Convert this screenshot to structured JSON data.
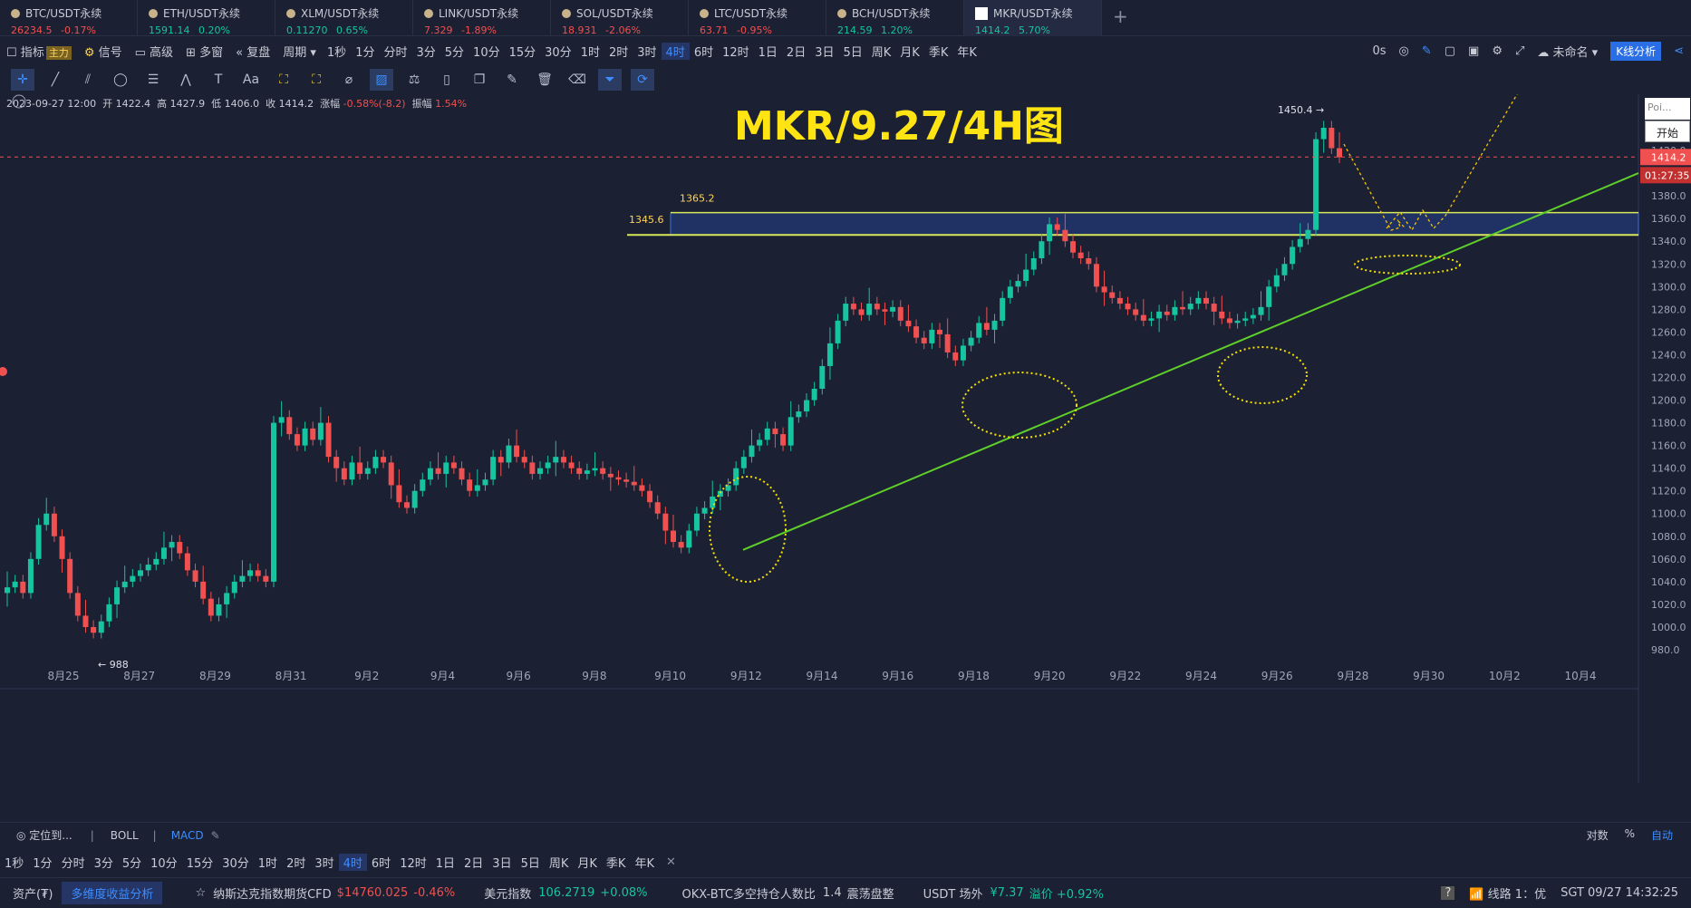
{
  "tabs": [
    {
      "name": "BTC/USDT永续",
      "price": "26234.5",
      "change": "-0.17%",
      "up": false
    },
    {
      "name": "ETH/USDT永续",
      "price": "1591.14",
      "change": "0.20%",
      "up": true
    },
    {
      "name": "XLM/USDT永续",
      "price": "0.11270",
      "change": "0.65%",
      "up": true
    },
    {
      "name": "LINK/USDT永续",
      "price": "7.329",
      "change": "-1.89%",
      "up": false
    },
    {
      "name": "SOL/USDT永续",
      "price": "18.931",
      "change": "-2.06%",
      "up": false
    },
    {
      "name": "LTC/USDT永续",
      "price": "63.71",
      "change": "-0.95%",
      "up": false
    },
    {
      "name": "BCH/USDT永续",
      "price": "214.59",
      "change": "1.20%",
      "up": true
    },
    {
      "name": "MKR/USDT永续",
      "price": "1414.2",
      "change": "5.70%",
      "up": true,
      "active": true
    }
  ],
  "toolbar": {
    "indicator": "指标",
    "main_tag": "主力",
    "signal": "信号",
    "advanced": "高级",
    "multi": "多窗",
    "replay": "复盘",
    "period": "周期",
    "periods": [
      "1秒",
      "1分",
      "分时",
      "3分",
      "5分",
      "10分",
      "15分",
      "30分",
      "1时",
      "2时",
      "3时",
      "4时",
      "6时",
      "12时",
      "1日",
      "2日",
      "3日",
      "5日",
      "周K",
      "月K",
      "季K",
      "年K"
    ],
    "active_period": "4时",
    "right_zero": "0s",
    "unnamed": "未命名",
    "kline_analysis": "K线分析"
  },
  "info": {
    "date": "2023-09-27 12:00",
    "open_label": "开",
    "open": "1422.4",
    "high_label": "高",
    "high": "1427.9",
    "low_label": "低",
    "low": "1406.0",
    "close_label": "收",
    "close": "1414.2",
    "chg_label": "涨幅",
    "chg": "-0.58%(-8.2)",
    "amp_label": "振幅",
    "amp": "1.54%"
  },
  "poi": "Poi...",
  "start": "开始",
  "chart_data": {
    "type": "candlestick",
    "title": "MKR/9.27/4H图",
    "y_ticks": [
      980,
      1000,
      1020,
      1040,
      1060,
      1080,
      1100,
      1120,
      1140,
      1160,
      1180,
      1200,
      1220,
      1240,
      1260,
      1280,
      1300,
      1320,
      1340,
      1360,
      1380,
      1400,
      1420,
      1440
    ],
    "ylim": [
      970,
      1480
    ],
    "x_labels": [
      "8月25",
      "8月27",
      "8月29",
      "8月31",
      "9月2",
      "9月4",
      "9月6",
      "9月8",
      "9月10",
      "9月12",
      "9月14",
      "9月16",
      "9月18",
      "9月20",
      "9月22",
      "9月24",
      "9月26",
      "9月28",
      "9月30",
      "10月2",
      "10月4"
    ],
    "last_price": "1414.2",
    "countdown": "01:27:35",
    "zone_top": "1365.2",
    "zone_bottom": "1345.6",
    "high_mark": "1450.4",
    "low_mark": "988"
  },
  "bottom": {
    "locate": "定位到...",
    "boll": "BOLL",
    "macd": "MACD",
    "right1": "对数",
    "right2": "%",
    "right3": "自动"
  },
  "bottom_periods": [
    "1秒",
    "1分",
    "分时",
    "3分",
    "5分",
    "10分",
    "15分",
    "30分",
    "1时",
    "2时",
    "3时",
    "4时",
    "6时",
    "12时",
    "1日",
    "2日",
    "3日",
    "5日",
    "周K",
    "月K",
    "季K",
    "年K"
  ],
  "status": {
    "assets": "资产(₮)",
    "multi": "多维度收益分析",
    "nasdaq": "纳斯达克指数期货CFD",
    "nasdaq_val": "$14760.025",
    "nasdaq_chg": "-0.46%",
    "dxy": "美元指数",
    "dxy_val": "106.2719",
    "dxy_chg": "+0.08%",
    "okx": "OKX-BTC多空持仓人数比",
    "okx_val": "1.4",
    "okx_state": "震荡盘整",
    "usdt": "USDT 场外",
    "usdt_val": "¥7.37",
    "premium": "溢价 +0.92%",
    "line": "线路 1：优",
    "time": "SGT  09/27 14:32:25"
  }
}
